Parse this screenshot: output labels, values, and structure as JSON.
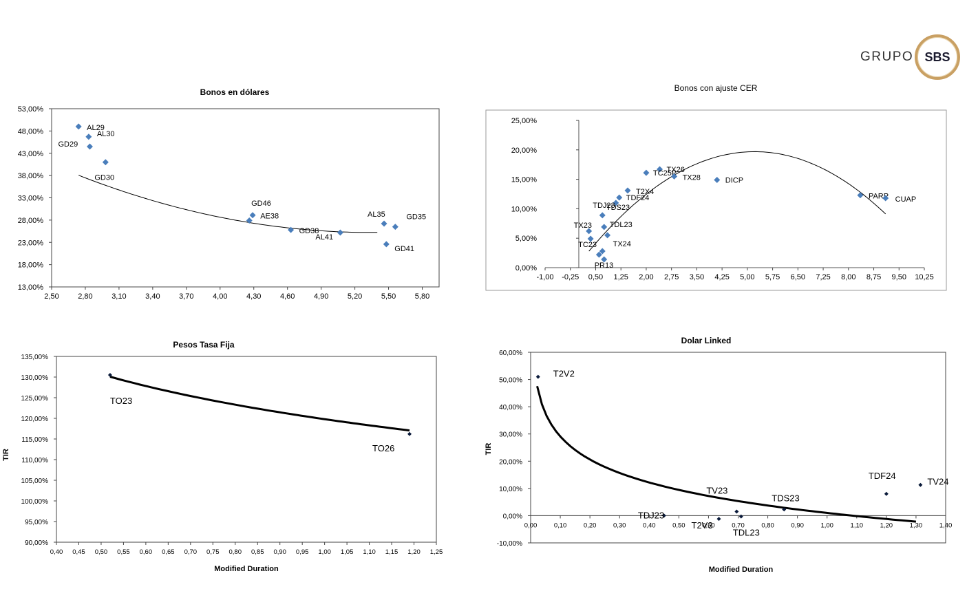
{
  "brand": {
    "word": "GRUPO",
    "mark": "SBS"
  },
  "footer": {
    "text": ""
  },
  "chart_data": [
    {
      "id": "usd",
      "type": "scatter",
      "title": "Bonos en dólares",
      "xlabel": "",
      "ylabel": "",
      "xlim": [
        2.5,
        5.95
      ],
      "ylim": [
        13,
        53
      ],
      "xticks": [
        2.5,
        2.8,
        3.1,
        3.4,
        3.7,
        4.0,
        4.3,
        4.6,
        4.9,
        5.2,
        5.5,
        5.8
      ],
      "yticks": [
        13,
        18,
        23,
        28,
        33,
        38,
        43,
        48,
        53
      ],
      "xtick_labels": [
        "2,50",
        "2,80",
        "3,10",
        "3,40",
        "3,70",
        "4,00",
        "4,30",
        "4,60",
        "4,90",
        "5,20",
        "5,50",
        "5,80"
      ],
      "ytick_labels": [
        "13,00%",
        "18,00%",
        "23,00%",
        "28,00%",
        "33,00%",
        "38,00%",
        "43,00%",
        "48,00%",
        "53,00%"
      ],
      "points": [
        {
          "label": "AL29",
          "x": 2.74,
          "y": 49.0
        },
        {
          "label": "AL30",
          "x": 2.83,
          "y": 46.7
        },
        {
          "label": "GD29",
          "x": 2.84,
          "y": 44.5
        },
        {
          "label": "GD30",
          "x": 2.98,
          "y": 41.0
        },
        {
          "label": "GD46",
          "x": 4.29,
          "y": 29.1
        },
        {
          "label": "AE38",
          "x": 4.26,
          "y": 27.9
        },
        {
          "label": "GD38",
          "x": 4.63,
          "y": 25.8
        },
        {
          "label": "AL41",
          "x": 5.07,
          "y": 25.2
        },
        {
          "label": "AL35",
          "x": 5.46,
          "y": 27.2
        },
        {
          "label": "GD35",
          "x": 5.56,
          "y": 26.5
        },
        {
          "label": "GD41",
          "x": 5.48,
          "y": 22.6
        }
      ],
      "trend": {
        "type": "polynomial",
        "coef": [
          1.8924,
          -20.227,
          79.274
        ]
      },
      "trend_range": [
        2.74,
        5.4
      ],
      "grid": false,
      "marker_color": "#4a7ebb"
    },
    {
      "id": "cer",
      "type": "scatter",
      "title": "Bonos con ajuste CER",
      "xlabel": "",
      "ylabel": "",
      "xlim": [
        -1.0,
        10.25
      ],
      "ylim": [
        0,
        25
      ],
      "xticks": [
        -1.0,
        -0.25,
        0.5,
        1.25,
        2.0,
        2.75,
        3.5,
        4.25,
        5.0,
        5.75,
        6.5,
        7.25,
        8.0,
        8.75,
        9.5,
        10.25
      ],
      "yticks": [
        0,
        5,
        10,
        15,
        20,
        25
      ],
      "xtick_labels": [
        "-1,00",
        "-0,25",
        "0,50",
        "1,25",
        "2,00",
        "2,75",
        "3,50",
        "4,25",
        "5,00",
        "5,75",
        "6,50",
        "7,25",
        "8,00",
        "8,75",
        "9,50",
        "10,25"
      ],
      "ytick_labels": [
        "0,00%",
        "5,00%",
        "10,00%",
        "15,00%",
        "20,00%",
        "25,00%"
      ],
      "points": [
        {
          "label": "TX26",
          "x": 2.4,
          "y": 16.7
        },
        {
          "label": "TC25P",
          "x": 2.0,
          "y": 16.1
        },
        {
          "label": "TX28",
          "x": 2.83,
          "y": 15.5
        },
        {
          "label": "DICP",
          "x": 4.1,
          "y": 14.9
        },
        {
          "label": "T2X4",
          "x": 1.45,
          "y": 13.1
        },
        {
          "label": "TDF24",
          "x": 1.2,
          "y": 11.9
        },
        {
          "label": "TDS23",
          "x": 1.1,
          "y": 11.0
        },
        {
          "label": "TDJ23",
          "x": 0.7,
          "y": 8.9
        },
        {
          "label": "TDL23",
          "x": 0.75,
          "y": 6.9
        },
        {
          "label": "TX23",
          "x": 0.3,
          "y": 6.2
        },
        {
          "label": "TC23",
          "x": 0.35,
          "y": 4.9
        },
        {
          "label": "TX24",
          "x": 0.85,
          "y": 5.5
        },
        {
          "label": "PR13",
          "x": 0.75,
          "y": 1.4
        },
        {
          "label": "",
          "x": 0.7,
          "y": 2.8
        },
        {
          "label": "",
          "x": 0.6,
          "y": 2.2
        },
        {
          "label": "PARP",
          "x": 8.35,
          "y": 12.3
        },
        {
          "label": "CUAP",
          "x": 9.1,
          "y": 11.8
        }
      ],
      "trend": {
        "type": "polynomial",
        "coef": [
          -0.7,
          7.3,
          0.66
        ]
      },
      "trend_range": [
        0.3,
        9.1
      ],
      "grid": false,
      "marker_color": "#4a7ebb"
    },
    {
      "id": "pesos",
      "type": "line",
      "title": "Pesos Tasa Fija",
      "xlabel": "Modified Duration",
      "ylabel": "TIR",
      "xlim": [
        0.4,
        1.25
      ],
      "ylim": [
        90,
        135
      ],
      "xticks": [
        0.4,
        0.45,
        0.5,
        0.55,
        0.6,
        0.65,
        0.7,
        0.75,
        0.8,
        0.85,
        0.9,
        0.95,
        1.0,
        1.05,
        1.1,
        1.15,
        1.2,
        1.25
      ],
      "yticks": [
        90,
        95,
        100,
        105,
        110,
        115,
        120,
        125,
        130,
        135
      ],
      "xtick_labels": [
        "0,40",
        "0,45",
        "0,50",
        "0,55",
        "0,60",
        "0,65",
        "0,70",
        "0,75",
        "0,80",
        "0,85",
        "0,90",
        "0,95",
        "1,00",
        "1,05",
        "1,10",
        "1,15",
        "1,20",
        "1,25"
      ],
      "ytick_labels": [
        "90,00%",
        "95,00%",
        "100,00%",
        "105,00%",
        "110,00%",
        "115,00%",
        "120,00%",
        "125,00%",
        "130,00%",
        "135,00%"
      ],
      "points": [
        {
          "label": "TO23",
          "x": 0.52,
          "y": 130.5
        },
        {
          "label": "TO26",
          "x": 1.19,
          "y": 116.2
        }
      ],
      "trend": {
        "type": "log",
        "a": 119.8,
        "b": -15.72
      },
      "trend_range": [
        0.52,
        1.19
      ],
      "grid": false,
      "marker_color": "#0a1a3a"
    },
    {
      "id": "linked",
      "type": "scatter",
      "title": "Dolar Linked",
      "xlabel": "Modified Duration",
      "ylabel": "TIR",
      "xlim": [
        0,
        1.4
      ],
      "ylim": [
        -10,
        60
      ],
      "xticks": [
        0,
        0.1,
        0.2,
        0.3,
        0.4,
        0.5,
        0.6,
        0.7,
        0.8,
        0.9,
        1.0,
        1.1,
        1.2,
        1.3,
        1.4
      ],
      "yticks": [
        -10,
        0,
        10,
        20,
        30,
        40,
        50,
        60
      ],
      "xtick_labels": [
        "0,00",
        "0,10",
        "0,20",
        "0,30",
        "0,40",
        "0,50",
        "0,60",
        "0,70",
        "0,80",
        "0,90",
        "1,00",
        "1,10",
        "1,20",
        "1,30",
        "1,40"
      ],
      "ytick_labels": [
        "-10,00%",
        "0,00%",
        "10,00%",
        "20,00%",
        "30,00%",
        "40,00%",
        "50,00%",
        "60,00%"
      ],
      "points": [
        {
          "label": "T2V2",
          "x": 0.025,
          "y": 51.0
        },
        {
          "label": "TDJ23",
          "x": 0.45,
          "y": 0.0
        },
        {
          "label": "T2V3",
          "x": 0.635,
          "y": -1.2
        },
        {
          "label": "TV23",
          "x": 0.695,
          "y": 1.5
        },
        {
          "label": "TDL23",
          "x": 0.71,
          "y": -0.3
        },
        {
          "label": "TDS23",
          "x": 0.855,
          "y": 2.3
        },
        {
          "label": "TDF24",
          "x": 1.2,
          "y": 8.0
        },
        {
          "label": "TV24",
          "x": 1.315,
          "y": 11.3
        }
      ],
      "trend": {
        "type": "log",
        "a": 1.0,
        "b": -12.2
      },
      "trend_range": [
        0.022,
        1.3
      ],
      "grid": false,
      "marker_color": "#0a1a3a"
    }
  ]
}
